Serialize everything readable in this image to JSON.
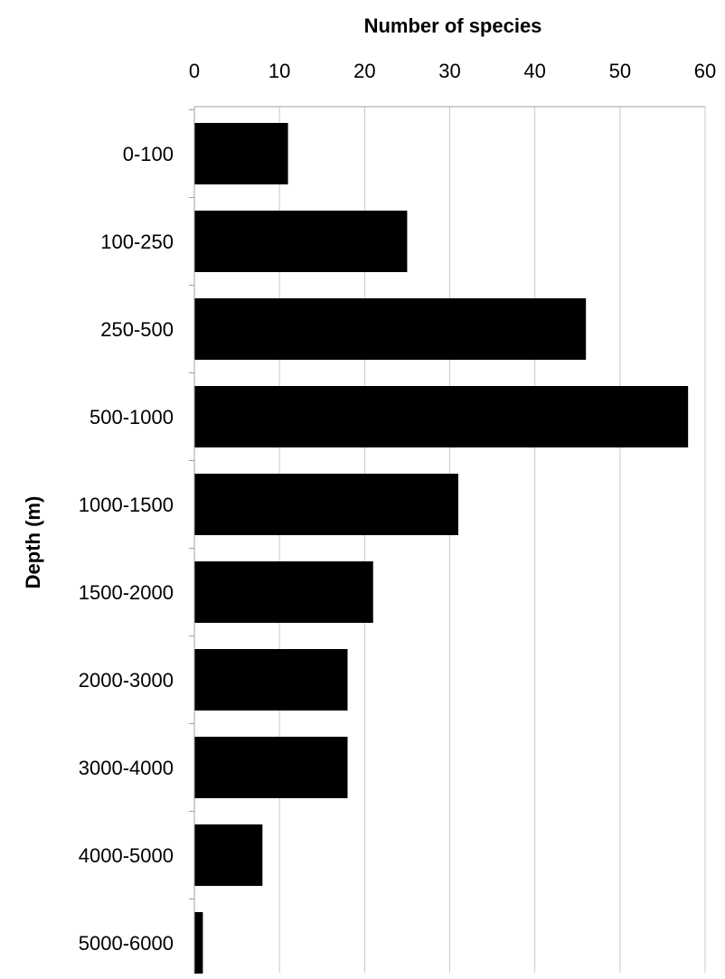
{
  "chart_data": {
    "type": "bar",
    "orientation": "horizontal",
    "title": "",
    "xlabel": "Number of species",
    "ylabel": "Depth (m)",
    "x_axis_position": "top",
    "xlim": [
      0,
      60
    ],
    "x_ticks": [
      0,
      10,
      20,
      30,
      40,
      50,
      60
    ],
    "grid": true,
    "legend": "none",
    "bar_color": "#000000",
    "categories": [
      "0-100",
      "100-250",
      "250-500",
      "500-1000",
      "1000-1500",
      "1500-2000",
      "2000-3000",
      "3000-4000",
      "4000-5000",
      "5000-6000"
    ],
    "values": [
      11,
      25,
      46,
      58,
      31,
      21,
      18,
      18,
      8,
      1
    ]
  }
}
